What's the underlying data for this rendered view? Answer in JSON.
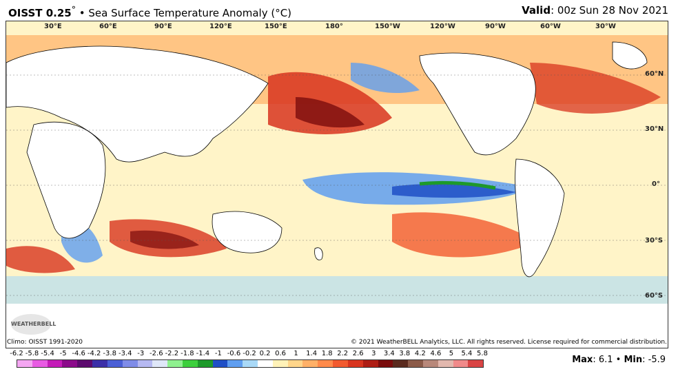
{
  "header": {
    "title_bold": "OISST 0.25",
    "title_degree": "°",
    "title_rest": " • Sea Surface Temperature Anomaly (°C)",
    "valid_label": "Valid",
    "valid_value": ": 00z Sun 28 Nov 2021"
  },
  "map": {
    "lon_labels": [
      "30°E",
      "60°E",
      "90°E",
      "120°E",
      "150°E",
      "180°",
      "150°W",
      "120°W",
      "90°W",
      "60°W",
      "30°W"
    ],
    "lat_labels": [
      "60°N",
      "30°N",
      "0°",
      "30°S",
      "60°S"
    ],
    "logo_text": "WEATHERBELL"
  },
  "footer": {
    "climo": "Climo: OISST 1991-2020",
    "copyright": "© 2021 WeatherBELL Analytics, LLC. All rights reserved. License required for commercial distribution."
  },
  "legend": {
    "labels": [
      "-6.2",
      "-5.8",
      "-5.4",
      "-5",
      "-4.6",
      "-4.2",
      "-3.8",
      "-3.4",
      "-3",
      "-2.6",
      "-2.2",
      "-1.8",
      "-1.4",
      "-1",
      "-0.6",
      "-0.2",
      "0.2",
      "0.6",
      "1",
      "1.4",
      "1.8",
      "2.2",
      "2.6",
      "3",
      "3.4",
      "3.8",
      "4.2",
      "4.6",
      "5",
      "5.4",
      "5.8"
    ],
    "colors": [
      "#f4a6f2",
      "#e85be3",
      "#c41bb8",
      "#8b0a8a",
      "#5c0a6e",
      "#3b2fa8",
      "#4a5fd6",
      "#7f8ce8",
      "#b6b9f2",
      "#dfe7f8",
      "#8ff08f",
      "#3ccf3c",
      "#1d9a2a",
      "#1f4fc6",
      "#5f9ef0",
      "#a9d9f7",
      "#ffffff",
      "#fff2b8",
      "#ffd58a",
      "#ffb067",
      "#ff8a4a",
      "#f25a2e",
      "#d8341e",
      "#ae1d14",
      "#7a0c0c",
      "#5a2a1e",
      "#8b5a48",
      "#b8887a",
      "#e2b8ae",
      "#f08a8a",
      "#d94444"
    ]
  },
  "stats": {
    "max_label": "Max",
    "max_value": ": 6.1 • ",
    "min_label": "Min",
    "min_value": ": -5.9"
  }
}
